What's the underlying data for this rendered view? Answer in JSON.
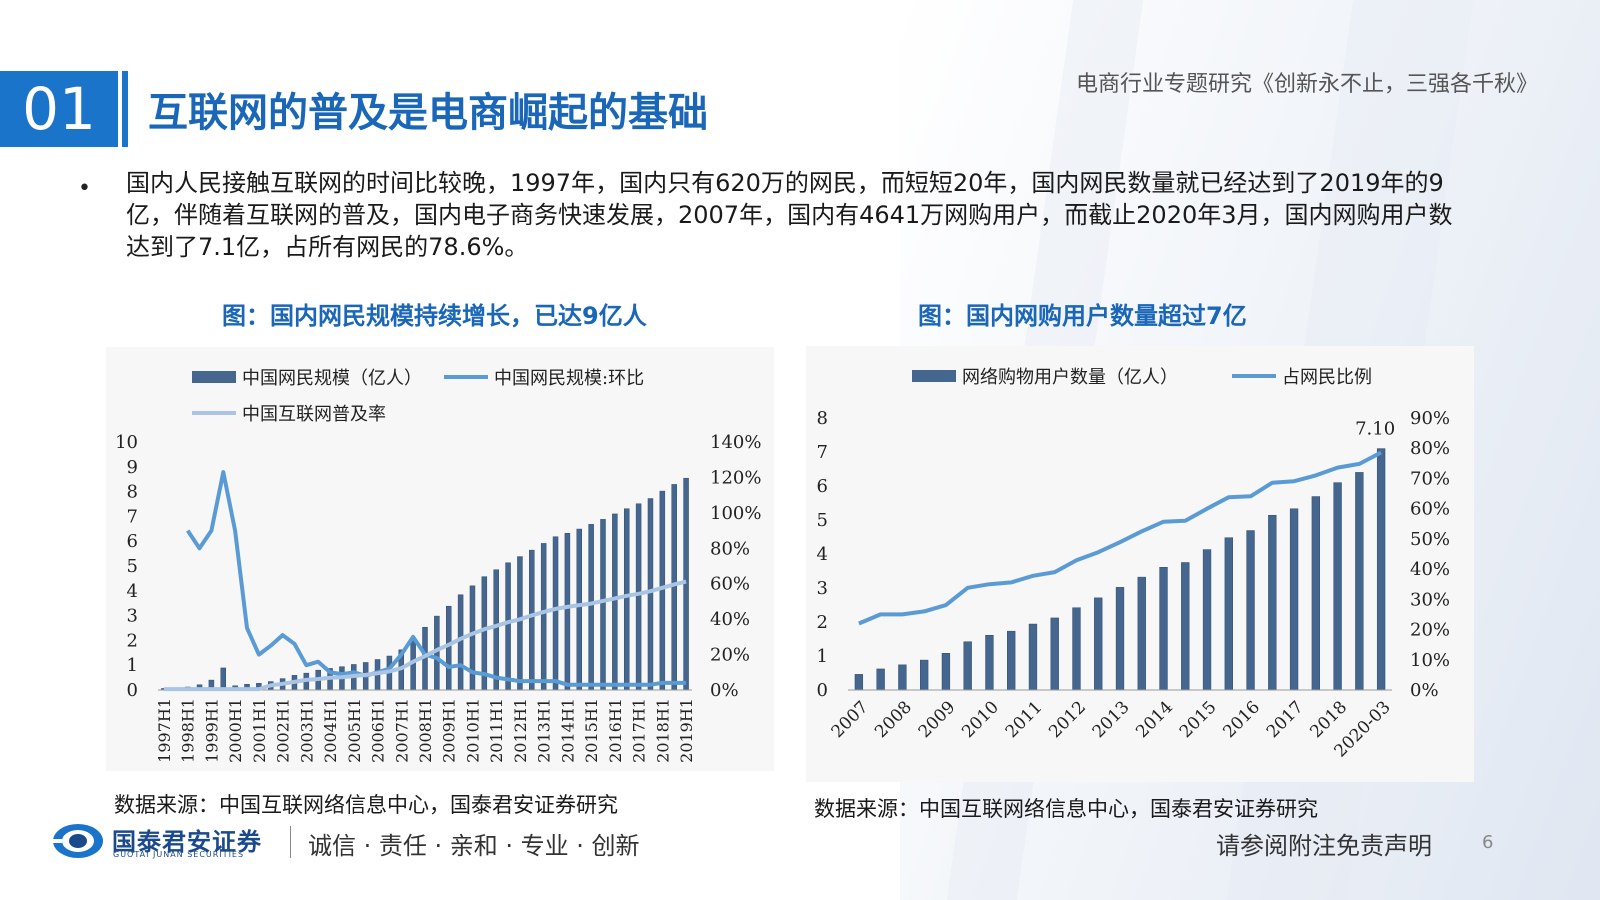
{
  "header": {
    "section_number": "01",
    "title": "互联网的普及是电商崛起的基础",
    "report_title": "电商行业专题研究《创新永不止，三强各千秋》"
  },
  "bullet": {
    "marker": "•",
    "text": "国内人民接触互联网的时间比较晚，1997年，国内只有620万的网民，而短短20年，国内网民数量就已经达到了2019年的9亿，伴随着互联网的普及，国内电子商务快速发展，2007年，国内有4641万网购用户，而截止2020年3月，国内网购用户数达到了7.1亿，占所有网民的78.6%。"
  },
  "chart_left": {
    "caption": "图：国内网民规模持续增长，已达9亿人",
    "source": "数据来源：中国互联网络信息中心，国泰君安证券研究"
  },
  "chart_right": {
    "caption": "图：国内网购用户数量超过7亿",
    "source": "数据来源：中国互联网络信息中心，国泰君安证券研究"
  },
  "footer": {
    "brand": "国泰君安证券",
    "brand_en": "GUOTAI JUNAN SECURITIES",
    "slogan": "诚信 · 责任 · 亲和 · 专业 · 创新",
    "disclaimer": "请参阅附注免责声明",
    "page": "6"
  },
  "colors": {
    "accent": "#1a74c9",
    "title": "#1a66b8",
    "bar": "#44668f",
    "line": "#5b9bd5",
    "line_light": "#a9c4e4"
  },
  "chart_data": [
    {
      "type": "bar",
      "combo": "bar+line",
      "categories": [
        "1997H1",
        "1997H2",
        "1998H1",
        "1998H2",
        "1999H1",
        "1999H2",
        "2000H1",
        "2000H2",
        "2001H1",
        "2001H2",
        "2002H1",
        "2002H2",
        "2003H1",
        "2003H2",
        "2004H1",
        "2004H2",
        "2005H1",
        "2005H2",
        "2006H1",
        "2006H2",
        "2007H1",
        "2007H2",
        "2008H1",
        "2008H2",
        "2009H1",
        "2009H2",
        "2010H1",
        "2010H2",
        "2011H1",
        "2011H2",
        "2012H1",
        "2012H2",
        "2013H1",
        "2013H2",
        "2014H1",
        "2014H2",
        "2015H1",
        "2015H2",
        "2016H1",
        "2016H2",
        "2017H1",
        "2017H2",
        "2018H1",
        "2018H2",
        "2019H1"
      ],
      "tick_labels": [
        "1997H1",
        "1998H1",
        "1999H1",
        "2000H1",
        "2001H1",
        "2002H1",
        "2003H1",
        "2004H1",
        "2005H1",
        "2006H1",
        "2007H1",
        "2008H1",
        "2009H1",
        "2010H1",
        "2011H1",
        "2012H1",
        "2013H1",
        "2014H1",
        "2015H1",
        "2016H1",
        "2017H1",
        "2018H1",
        "2019H1"
      ],
      "series": [
        {
          "name": "中国网民规模（亿人）",
          "kind": "bar",
          "axis": "left",
          "values": [
            0.062,
            0.062,
            0.12,
            0.21,
            0.4,
            0.89,
            0.17,
            0.23,
            0.27,
            0.34,
            0.46,
            0.59,
            0.68,
            0.8,
            0.87,
            0.94,
            1.03,
            1.11,
            1.23,
            1.37,
            1.62,
            2.1,
            2.53,
            2.98,
            3.38,
            3.84,
            4.2,
            4.57,
            4.85,
            5.13,
            5.38,
            5.64,
            5.91,
            6.18,
            6.32,
            6.49,
            6.68,
            6.88,
            7.1,
            7.31,
            7.51,
            7.72,
            8.02,
            8.29,
            8.54
          ]
        },
        {
          "name": "中国网民规模:环比",
          "kind": "line",
          "axis": "right",
          "values": [
            null,
            null,
            90,
            80,
            90,
            123,
            90,
            35,
            20,
            25,
            31,
            26,
            14,
            16,
            10,
            9,
            10,
            8,
            10,
            12,
            20,
            30,
            20,
            18,
            13,
            14,
            10,
            9,
            7,
            6,
            5,
            5,
            5,
            5,
            3,
            3,
            3,
            3,
            3,
            3,
            3,
            3,
            4,
            4,
            4
          ]
        },
        {
          "name": "中国互联网普及率",
          "kind": "line",
          "axis": "right",
          "values": [
            0.5,
            0.5,
            0.5,
            0.5,
            0.5,
            0.5,
            0.5,
            0.5,
            0.5,
            2.6,
            3.5,
            4.6,
            5.7,
            6.2,
            6.9,
            7.2,
            7.9,
            8.5,
            9.4,
            10.5,
            12.3,
            16,
            19.1,
            22.6,
            25.5,
            28.9,
            31.8,
            34.3,
            36.2,
            38.3,
            39.9,
            42.1,
            44.1,
            45.8,
            46.9,
            47.9,
            48.8,
            50.3,
            51.7,
            53.2,
            54.3,
            55.8,
            57.7,
            59.6,
            61.2
          ]
        }
      ],
      "ylim_left": [
        0,
        10
      ],
      "yticks_left": [
        "0",
        "1",
        "2",
        "3",
        "4",
        "5",
        "6",
        "7",
        "8",
        "9",
        "10"
      ],
      "ylim_right": [
        0,
        140
      ],
      "yticks_right": [
        "0%",
        "20%",
        "40%",
        "60%",
        "80%",
        "100%",
        "120%",
        "140%"
      ],
      "legend": "top"
    },
    {
      "type": "bar",
      "combo": "bar+line",
      "categories": [
        "2007",
        "2007H2",
        "2008",
        "2008H2",
        "2009",
        "2009H2",
        "2010",
        "2010H2",
        "2011",
        "2011H2",
        "2012",
        "2012H2",
        "2013",
        "2013H2",
        "2014",
        "2014H2",
        "2015",
        "2015H2",
        "2016",
        "2016H2",
        "2017",
        "2017H2",
        "2018",
        "2018H2",
        "2020-03"
      ],
      "tick_labels": [
        "2007",
        "2008",
        "2009",
        "2010",
        "2011",
        "2012",
        "2013",
        "2014",
        "2015",
        "2016",
        "2017",
        "2018",
        "2020-03"
      ],
      "series": [
        {
          "name": "网络购物用户数量（亿人）",
          "kind": "bar",
          "axis": "left",
          "values": [
            0.46,
            0.62,
            0.74,
            0.88,
            1.08,
            1.42,
            1.61,
            1.73,
            1.94,
            2.12,
            2.42,
            2.71,
            3.02,
            3.32,
            3.61,
            3.75,
            4.13,
            4.48,
            4.69,
            5.14,
            5.33,
            5.69,
            6.1,
            6.4,
            7.1
          ]
        },
        {
          "name": "占网民比例",
          "kind": "line",
          "axis": "right",
          "values": [
            22,
            25,
            25,
            26,
            28.1,
            33.8,
            35,
            35.6,
            37.8,
            39,
            42.9,
            45.6,
            48.9,
            52.5,
            55.7,
            56,
            60,
            63.8,
            64.1,
            68.6,
            69.1,
            71,
            73.6,
            74.8,
            78.6
          ]
        }
      ],
      "data_labels": [
        {
          "index": 24,
          "text": "7.10"
        }
      ],
      "ylim_left": [
        0,
        8
      ],
      "yticks_left": [
        "0",
        "1",
        "2",
        "3",
        "4",
        "5",
        "6",
        "7",
        "8"
      ],
      "ylim_right": [
        0,
        90
      ],
      "yticks_right": [
        "0%",
        "10%",
        "20%",
        "30%",
        "40%",
        "50%",
        "60%",
        "70%",
        "80%",
        "90%"
      ],
      "legend": "top"
    }
  ]
}
